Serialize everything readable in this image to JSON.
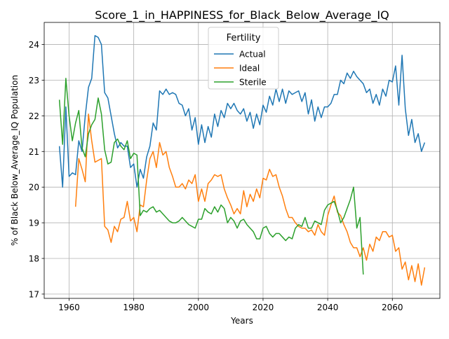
{
  "chart_data": {
    "type": "line",
    "title": "Score_1_in_HAPPINESS_for_Black_Below_Average_IQ",
    "xlabel": "Years",
    "ylabel": "% of Black Below_Average_IQ Population",
    "xlim": [
      1952.3,
      2074.7
    ],
    "ylim": [
      16.88,
      24.62
    ],
    "xticks": [
      1960,
      1980,
      2000,
      2020,
      2040,
      2060
    ],
    "yticks": [
      17,
      18,
      19,
      20,
      21,
      22,
      23,
      24
    ],
    "grid": true,
    "legend": {
      "title": "Fertility",
      "placement": "upper center"
    },
    "series": [
      {
        "name": "Actual",
        "color": "#1f77b4",
        "x": [
          1957,
          1958,
          1959,
          1960,
          1961,
          1962,
          1963,
          1964,
          1965,
          1966,
          1967,
          1968,
          1969,
          1970,
          1971,
          1972,
          1973,
          1974,
          1975,
          1976,
          1977,
          1978,
          1979,
          1980,
          1981,
          1982,
          1983,
          1984,
          1985,
          1986,
          1987,
          1988,
          1989,
          1990,
          1991,
          1992,
          1993,
          1994,
          1995,
          1996,
          1997,
          1998,
          1999,
          2000,
          2001,
          2002,
          2003,
          2004,
          2005,
          2006,
          2007,
          2008,
          2009,
          2010,
          2011,
          2012,
          2013,
          2014,
          2015,
          2016,
          2017,
          2018,
          2019,
          2020,
          2021,
          2022,
          2023,
          2024,
          2025,
          2026,
          2027,
          2028,
          2029,
          2030,
          2031,
          2032,
          2033,
          2034,
          2035,
          2036,
          2037,
          2038,
          2039,
          2040,
          2041,
          2042,
          2043,
          2044,
          2045,
          2046,
          2047,
          2048,
          2049,
          2050,
          2051,
          2052,
          2053,
          2054,
          2055,
          2056,
          2057,
          2058,
          2059,
          2060,
          2061,
          2062,
          2063,
          2064,
          2065,
          2066,
          2067,
          2068,
          2069,
          2070
        ],
        "values": [
          21.15,
          20.0,
          22.25,
          20.3,
          20.4,
          20.35,
          21.3,
          21.0,
          22.0,
          22.8,
          23.05,
          24.25,
          24.2,
          24.0,
          22.65,
          22.5,
          22.0,
          21.5,
          21.1,
          21.25,
          21.15,
          21.15,
          20.55,
          20.65,
          20.0,
          20.5,
          20.25,
          20.85,
          21.15,
          21.8,
          21.6,
          22.7,
          22.6,
          22.75,
          22.6,
          22.65,
          22.6,
          22.35,
          22.3,
          22.0,
          22.2,
          21.6,
          21.95,
          21.2,
          21.75,
          21.25,
          21.7,
          21.4,
          22.05,
          21.7,
          22.15,
          21.95,
          22.35,
          22.2,
          22.35,
          22.15,
          22.05,
          22.2,
          21.85,
          22.1,
          21.65,
          22.05,
          21.75,
          22.3,
          22.1,
          22.55,
          22.3,
          22.75,
          22.4,
          22.75,
          22.35,
          22.7,
          22.6,
          22.65,
          22.7,
          22.4,
          22.65,
          22.05,
          22.45,
          21.85,
          22.25,
          21.95,
          22.25,
          22.25,
          22.35,
          22.6,
          22.6,
          23.0,
          22.9,
          23.2,
          23.05,
          23.25,
          23.1,
          23.0,
          22.9,
          22.65,
          22.75,
          22.35,
          22.6,
          22.3,
          22.75,
          22.55,
          23.0,
          22.95,
          23.4,
          22.3,
          23.7,
          22.2,
          21.45,
          21.9,
          21.25,
          21.5,
          21.0,
          21.25
        ]
      },
      {
        "name": "Ideal",
        "color": "#ff7f0e",
        "x": [
          1962,
          1963,
          1964,
          1965,
          1966,
          1967,
          1968,
          1969,
          1970,
          1971,
          1972,
          1973,
          1974,
          1975,
          1976,
          1977,
          1978,
          1979,
          1980,
          1981,
          1982,
          1983,
          1984,
          1985,
          1986,
          1987,
          1988,
          1989,
          1990,
          1991,
          1992,
          1993,
          1994,
          1995,
          1996,
          1997,
          1998,
          1999,
          2000,
          2001,
          2002,
          2003,
          2004,
          2005,
          2006,
          2007,
          2008,
          2009,
          2010,
          2011,
          2012,
          2013,
          2014,
          2015,
          2016,
          2017,
          2018,
          2019,
          2020,
          2021,
          2022,
          2023,
          2024,
          2025,
          2026,
          2027,
          2028,
          2029,
          2030,
          2031,
          2032,
          2033,
          2034,
          2035,
          2036,
          2037,
          2038,
          2039,
          2040,
          2041,
          2042,
          2043,
          2044,
          2045,
          2046,
          2047,
          2048,
          2049,
          2050,
          2051,
          2052,
          2053,
          2054,
          2055,
          2056,
          2057,
          2058,
          2059,
          2060,
          2061,
          2062,
          2063,
          2064,
          2065,
          2066,
          2067,
          2068,
          2069,
          2070
        ],
        "values": [
          19.45,
          20.8,
          20.5,
          20.15,
          22.05,
          21.3,
          20.7,
          20.75,
          20.8,
          18.9,
          18.8,
          18.45,
          18.9,
          18.75,
          19.1,
          19.15,
          19.6,
          19.05,
          19.15,
          18.75,
          19.5,
          19.45,
          20.2,
          20.8,
          21.0,
          20.55,
          21.25,
          20.9,
          21.0,
          20.55,
          20.3,
          20.0,
          20.0,
          20.1,
          19.95,
          20.2,
          20.1,
          20.35,
          19.6,
          19.95,
          19.6,
          20.1,
          20.2,
          20.35,
          20.3,
          20.35,
          19.95,
          19.7,
          19.5,
          19.25,
          19.4,
          19.25,
          19.9,
          19.45,
          19.8,
          19.6,
          19.95,
          19.7,
          20.25,
          20.2,
          20.5,
          20.3,
          20.35,
          20.0,
          19.75,
          19.4,
          19.15,
          19.15,
          19.0,
          18.9,
          18.85,
          18.85,
          18.75,
          18.8,
          18.65,
          18.95,
          18.75,
          18.65,
          19.2,
          19.5,
          19.75,
          19.3,
          19.2,
          18.95,
          18.75,
          18.45,
          18.3,
          18.3,
          18.05,
          18.3,
          17.95,
          18.4,
          18.2,
          18.6,
          18.5,
          18.75,
          18.75,
          18.6,
          18.65,
          18.2,
          18.3,
          17.7,
          17.9,
          17.4,
          17.8,
          17.35,
          17.85,
          17.25,
          17.75
        ]
      },
      {
        "name": "Sterile",
        "color": "#2ca02c",
        "x": [
          1957,
          1958,
          1959,
          1960,
          1961,
          1962,
          1963,
          1964,
          1965,
          1966,
          1967,
          1968,
          1969,
          1970,
          1971,
          1972,
          1973,
          1974,
          1975,
          1976,
          1977,
          1978,
          1979,
          1980,
          1981,
          1982,
          1983,
          1984,
          1985,
          1986,
          1987,
          1988,
          1989,
          1990,
          1991,
          1992,
          1993,
          1994,
          1995,
          1996,
          1997,
          1998,
          1999,
          2000,
          2001,
          2002,
          2003,
          2004,
          2005,
          2006,
          2007,
          2008,
          2009,
          2010,
          2011,
          2012,
          2013,
          2014,
          2015,
          2016,
          2017,
          2018,
          2019,
          2020,
          2021,
          2022,
          2023,
          2024,
          2025,
          2026,
          2027,
          2028,
          2029,
          2030,
          2031,
          2032,
          2033,
          2034,
          2035,
          2036,
          2037,
          2038,
          2039,
          2040,
          2041,
          2042,
          2043,
          2044,
          2045,
          2046,
          2047,
          2048,
          2049,
          2050,
          2051
        ],
        "values": [
          22.45,
          21.2,
          23.05,
          22.0,
          21.3,
          21.8,
          22.15,
          21.1,
          20.85,
          21.5,
          21.75,
          21.9,
          22.5,
          22.05,
          21.05,
          20.65,
          20.7,
          21.25,
          21.35,
          21.15,
          21.05,
          21.3,
          20.8,
          20.95,
          20.9,
          19.2,
          19.35,
          19.3,
          19.4,
          19.45,
          19.3,
          19.35,
          19.25,
          19.15,
          19.05,
          19.0,
          19.0,
          19.05,
          19.15,
          19.05,
          18.95,
          18.9,
          18.85,
          19.1,
          19.1,
          19.4,
          19.3,
          19.25,
          19.45,
          19.3,
          19.5,
          19.4,
          19.0,
          19.15,
          19.05,
          18.85,
          19.05,
          19.1,
          18.95,
          18.85,
          18.75,
          18.55,
          18.55,
          18.85,
          18.9,
          18.7,
          18.6,
          18.7,
          18.7,
          18.6,
          18.5,
          18.6,
          18.55,
          18.85,
          18.95,
          18.9,
          19.15,
          18.85,
          18.85,
          19.05,
          19.0,
          18.95,
          19.35,
          19.5,
          19.55,
          19.6,
          19.35,
          19.0,
          19.15,
          19.4,
          19.65,
          20.0,
          18.85,
          19.15,
          17.55
        ]
      }
    ]
  }
}
